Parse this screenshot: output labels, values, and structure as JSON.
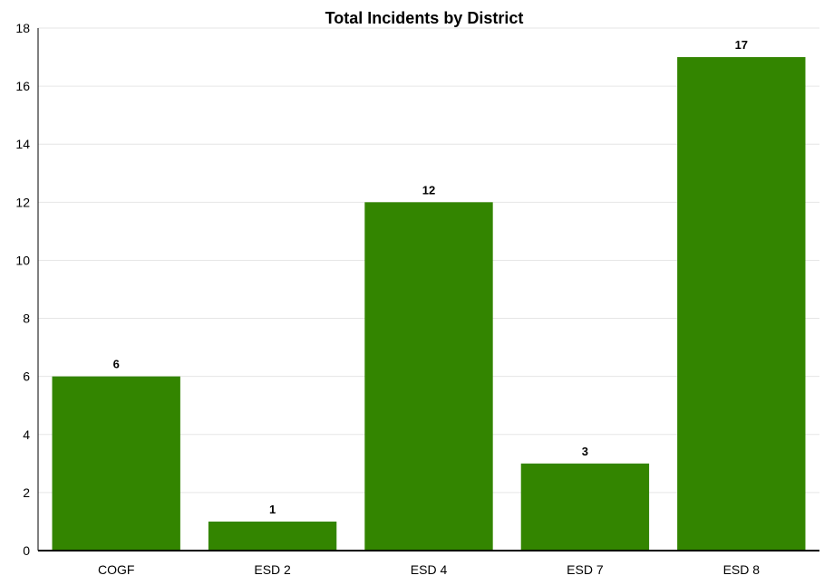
{
  "chart_data": {
    "type": "bar",
    "title": "Total Incidents by District",
    "xlabel": "",
    "ylabel": "",
    "categories": [
      "COGF",
      "ESD 2",
      "ESD 4",
      "ESD 7",
      "ESD 8"
    ],
    "values": [
      6,
      1,
      12,
      3,
      17
    ],
    "data_labels": [
      "6",
      "1",
      "12",
      "3",
      "17"
    ],
    "ylim": [
      0,
      18
    ],
    "y_ticks": [
      0,
      2,
      4,
      6,
      8,
      10,
      12,
      14,
      16,
      18
    ],
    "y_tick_labels": [
      "0",
      "2",
      "4",
      "6",
      "8",
      "10",
      "12",
      "14",
      "16",
      "18"
    ],
    "bar_color": "#338500",
    "grid": true,
    "legend": "none"
  }
}
